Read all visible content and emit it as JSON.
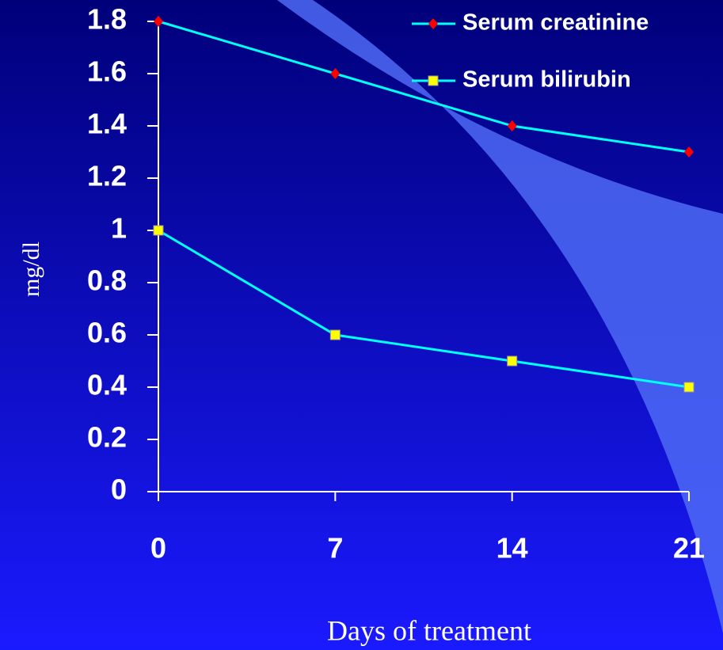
{
  "chart_data": {
    "type": "line",
    "x": [
      0,
      7,
      14,
      21
    ],
    "xlim": [
      0,
      21
    ],
    "xticks": [
      0,
      7,
      14,
      21
    ],
    "ylim": [
      0,
      1.8
    ],
    "yticks": [
      0,
      0.2,
      0.4,
      0.6,
      0.8,
      1,
      1.2,
      1.4,
      1.6,
      1.8
    ],
    "x_label": "Days of treatment",
    "y_label": "mg/dl",
    "legend": "top-right",
    "series": [
      {
        "name": "Serum creatinine",
        "color": "#00ffff",
        "marker": "diamond",
        "marker_color": "#ff0000",
        "values": [
          1.8,
          1.6,
          1.4,
          1.3
        ]
      },
      {
        "name": "Serum bilirubin",
        "color": "#00ffff",
        "marker": "square",
        "marker_color": "#ffff00",
        "values": [
          1.0,
          0.6,
          0.5,
          0.4
        ]
      }
    ]
  }
}
